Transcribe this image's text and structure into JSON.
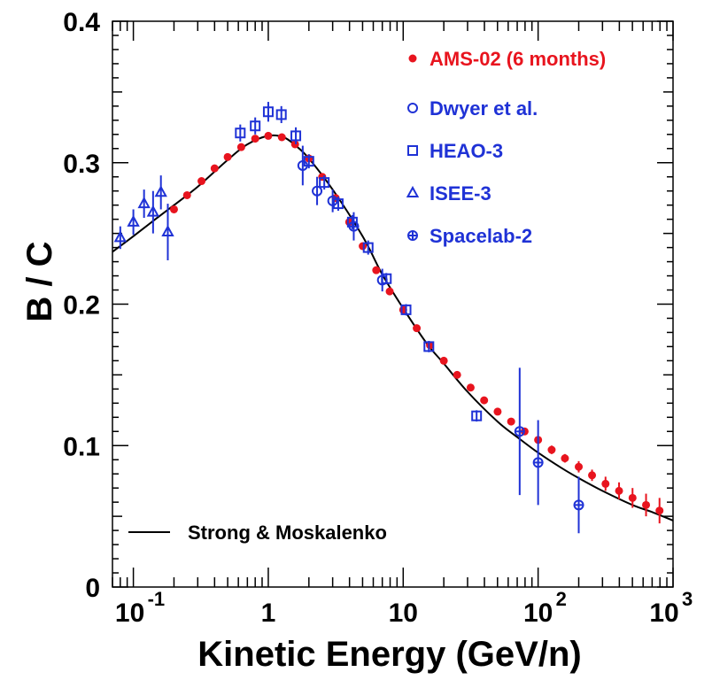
{
  "chart_data": {
    "type": "scatter",
    "title": "",
    "xlabel": "Kinetic Energy (GeV/n)",
    "ylabel": "B / C",
    "xscale": "log",
    "xlim": [
      0.07,
      1000
    ],
    "ylim": [
      0,
      0.4
    ],
    "grid": false,
    "legend_position": "top-right",
    "x_ticks": [
      {
        "value": 0.1,
        "label": "10",
        "exp": "-1"
      },
      {
        "value": 1,
        "label": "1",
        "exp": ""
      },
      {
        "value": 10,
        "label": "10",
        "exp": ""
      },
      {
        "value": 100,
        "label": "10",
        "exp": "2"
      },
      {
        "value": 1000,
        "label": "10",
        "exp": "3"
      }
    ],
    "y_ticks": [
      {
        "value": 0,
        "label": "0"
      },
      {
        "value": 0.1,
        "label": "0.1"
      },
      {
        "value": 0.2,
        "label": "0.2"
      },
      {
        "value": 0.3,
        "label": "0.3"
      },
      {
        "value": 0.4,
        "label": "0.4"
      }
    ],
    "curve_legend": {
      "name": "Strong & Moskalenko",
      "color": "#000000"
    },
    "curve": {
      "x": [
        0.07,
        0.1,
        0.15,
        0.2,
        0.3,
        0.5,
        0.7,
        1.0,
        1.3,
        1.6,
        2.0,
        3.0,
        5.0,
        7.0,
        10,
        15,
        20,
        30,
        50,
        70,
        100,
        150,
        200,
        300,
        500,
        700,
        1000
      ],
      "y": [
        0.237,
        0.248,
        0.261,
        0.27,
        0.283,
        0.302,
        0.313,
        0.319,
        0.318,
        0.312,
        0.303,
        0.281,
        0.248,
        0.221,
        0.197,
        0.172,
        0.158,
        0.138,
        0.117,
        0.106,
        0.095,
        0.084,
        0.077,
        0.068,
        0.058,
        0.053,
        0.047
      ]
    },
    "series": [
      {
        "name": "AMS-02 (6 months)",
        "marker": "filled-circle",
        "color": "#e8141e",
        "x": [
          0.2,
          0.25,
          0.32,
          0.4,
          0.5,
          0.63,
          0.8,
          1.0,
          1.26,
          1.58,
          2.0,
          2.51,
          3.16,
          3.98,
          5.01,
          6.31,
          7.94,
          10.0,
          12.6,
          15.8,
          20.0,
          25.1,
          31.6,
          39.8,
          50.1,
          63.1,
          79.4,
          100,
          126,
          158,
          200,
          251,
          316,
          398,
          501,
          631,
          794
        ],
        "y": [
          0.267,
          0.277,
          0.287,
          0.296,
          0.304,
          0.311,
          0.317,
          0.319,
          0.318,
          0.313,
          0.303,
          0.29,
          0.275,
          0.258,
          0.241,
          0.224,
          0.209,
          0.196,
          0.183,
          0.171,
          0.16,
          0.15,
          0.141,
          0.132,
          0.124,
          0.117,
          0.11,
          0.104,
          0.097,
          0.091,
          0.085,
          0.079,
          0.073,
          0.068,
          0.063,
          0.058,
          0.054
        ],
        "err": [
          0,
          0,
          0,
          0,
          0,
          0,
          0,
          0,
          0,
          0,
          0,
          0,
          0,
          0,
          0,
          0,
          0,
          0,
          0,
          0,
          0,
          0,
          0,
          0,
          0,
          0,
          0,
          0,
          0.003,
          0.003,
          0.004,
          0.004,
          0.005,
          0.006,
          0.007,
          0.008,
          0.009
        ]
      },
      {
        "name": "Dwyer et al.",
        "marker": "open-circle",
        "color": "#1f32d6",
        "x": [
          1.8,
          2.3,
          3.0,
          4.3,
          7.0
        ],
        "y": [
          0.298,
          0.28,
          0.273,
          0.255,
          0.217
        ],
        "err": [
          0.014,
          0.01,
          0.008,
          0.01,
          0.008
        ]
      },
      {
        "name": "HEAO-3",
        "marker": "open-square",
        "color": "#1f32d6",
        "x": [
          0.62,
          0.8,
          1.0,
          1.25,
          1.6,
          2.0,
          2.6,
          3.3,
          4.2,
          5.5,
          7.5,
          10.5,
          15.5,
          35.0
        ],
        "y": [
          0.321,
          0.326,
          0.336,
          0.334,
          0.319,
          0.301,
          0.286,
          0.271,
          0.258,
          0.24,
          0.218,
          0.196,
          0.17,
          0.121
        ],
        "err": [
          0.006,
          0.006,
          0.007,
          0.006,
          0.006,
          0.005,
          0.005,
          0.005,
          0.005,
          0.005,
          0.004,
          0.004,
          0.004,
          0.004
        ]
      },
      {
        "name": "ISEE-3",
        "marker": "open-triangle",
        "color": "#1f32d6",
        "x": [
          0.08,
          0.1,
          0.12,
          0.14,
          0.16,
          0.18
        ],
        "y": [
          0.247,
          0.258,
          0.271,
          0.265,
          0.279,
          0.251
        ],
        "err": [
          0.008,
          0.009,
          0.01,
          0.015,
          0.012,
          0.02
        ]
      },
      {
        "name": "Spacelab-2",
        "marker": "cross-circle",
        "color": "#1f32d6",
        "x": [
          73,
          100,
          200
        ],
        "y": [
          0.11,
          0.088,
          0.058
        ],
        "err": [
          0.045,
          0.03,
          0.02
        ]
      }
    ]
  }
}
